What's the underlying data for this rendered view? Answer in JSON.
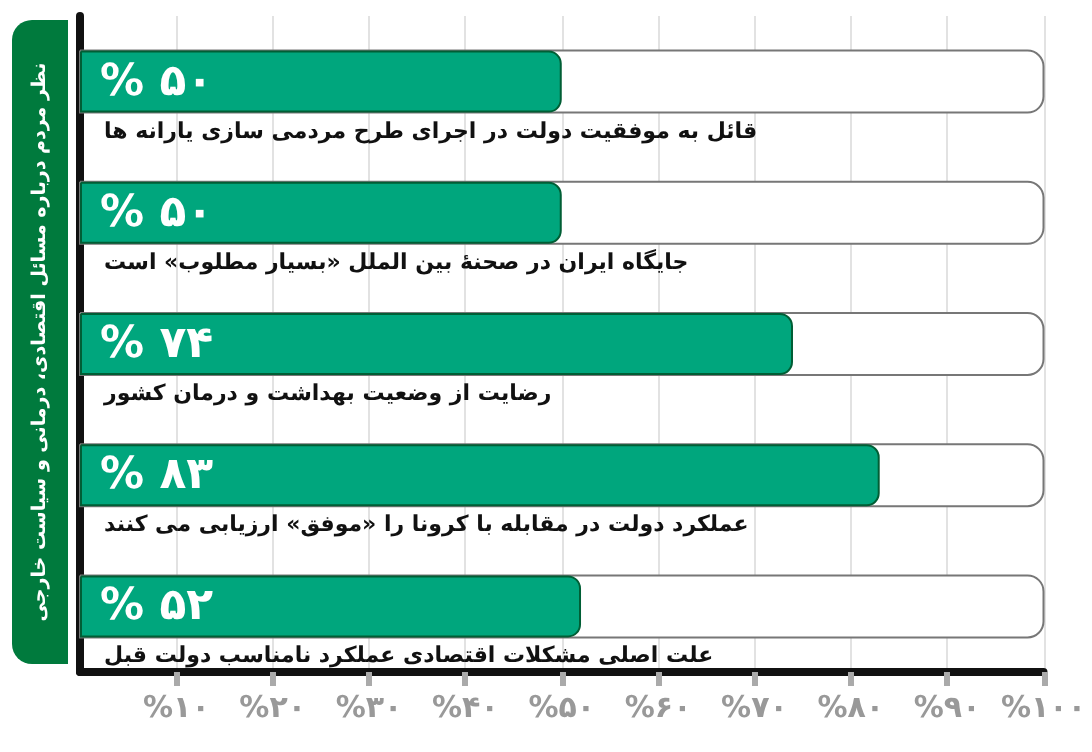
{
  "chart_data": {
    "type": "bar",
    "orientation": "horizontal",
    "title": "نظر مردم درباره مسائل اقتصادی، درمانی و سیاست خارجی",
    "categories": [
      "قائل به موفقیت دولت در اجرای طرح مردمی سازی یارانه ها",
      "جایگاه ایران در صحنهٔ بین الملل «بسیار مطلوب» است",
      "رضایت از وضعیت بهداشت و درمان کشور",
      "عملکرد دولت در مقابله با کرونا را «موفق» ارزیابی می کنند",
      "علت اصلی مشکلات اقتصادی عملکرد نامناسب دولت قبل"
    ],
    "values": [
      50,
      50,
      74,
      83,
      52
    ],
    "value_labels": [
      "% ۵۰",
      "% ۵۰",
      "% ۷۴",
      "% ۸۳",
      "% ۵۲"
    ],
    "color": "#00a67d",
    "xlim": [
      0,
      100
    ],
    "xticks": [
      {
        "value": 10,
        "label": "%۱۰"
      },
      {
        "value": 20,
        "label": "%۲۰"
      },
      {
        "value": 30,
        "label": "%۳۰"
      },
      {
        "value": 40,
        "label": "%۴۰"
      },
      {
        "value": 50,
        "label": "%۵۰"
      },
      {
        "value": 60,
        "label": "%۶۰"
      },
      {
        "value": 70,
        "label": "%۷۰"
      },
      {
        "value": 80,
        "label": "%۸۰"
      },
      {
        "value": 90,
        "label": "%۹۰"
      },
      {
        "value": 100,
        "label": "%۱۰۰"
      }
    ],
    "grid": "x"
  }
}
